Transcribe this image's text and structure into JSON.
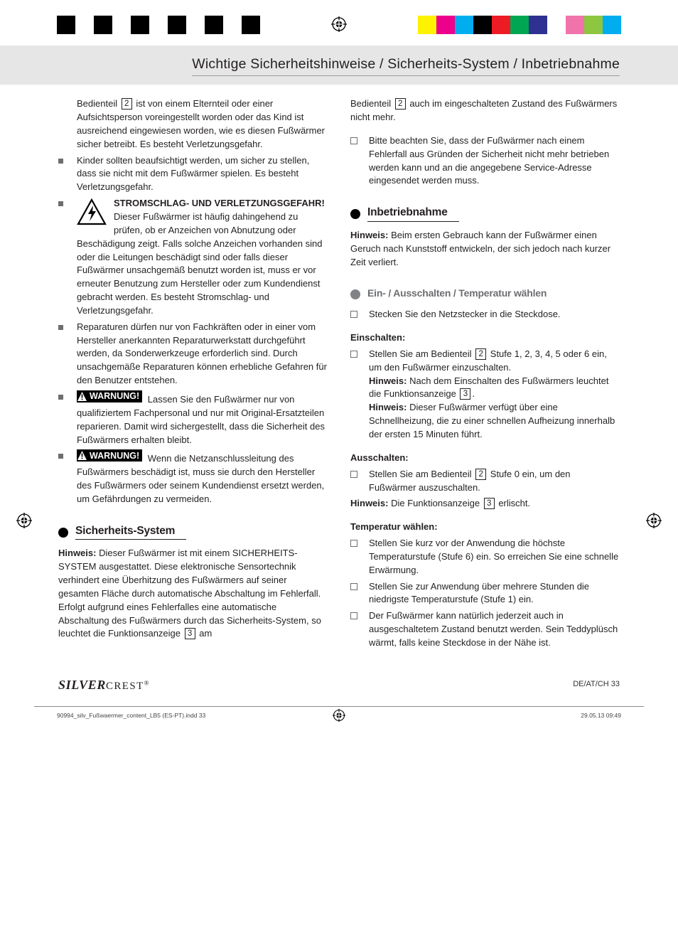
{
  "registration_colors_left": [
    "#000000",
    "#ffffff",
    "#000000",
    "#ffffff",
    "#000000",
    "#ffffff",
    "#000000",
    "#ffffff",
    "#000000",
    "#ffffff",
    "#000000"
  ],
  "registration_colors_right": [
    "#fff200",
    "#ec008c",
    "#00aeef",
    "#000000",
    "#ed1c24",
    "#00a651",
    "#2e3192",
    "#ffffff",
    "#f173ac",
    "#8dc63f",
    "#00adef"
  ],
  "header": {
    "title": "Wichtige Sicherheitshinweise / Sicherheits-System / Inbetriebnahme"
  },
  "col_left": {
    "intro_pre": "Bedienteil ",
    "intro_ref": "2",
    "intro_post": " ist von einem Elternteil oder einer Aufsichtsperson voreingestellt worden oder das Kind ist ausreichend eingewiesen worden, wie es diesen Fußwärmer sicher betreibt. Es besteht Verletzungsgefahr.",
    "b1": "Kinder sollten beaufsichtigt werden, um sicher zu stellen, dass sie nicht mit dem Fußwärmer spielen. Es besteht Verletzungsgefahr.",
    "b2_warn": "STROMSCHLAG- UND VERLETZUNGSGEFAHR!",
    "b2_rest": " Dieser Fußwärmer ist häufig dahingehend zu prüfen, ob er Anzeichen von Abnutzung oder Beschädigung zeigt. Falls solche Anzeichen vorhanden sind oder die Leitungen beschädigt sind oder falls dieser Fußwärmer unsachgemäß benutzt worden ist, muss er vor erneuter Benutzung zum Hersteller oder zum Kundendienst gebracht werden. Es besteht Stromschlag- und Verletzungsgefahr.",
    "b3": "Reparaturen dürfen nur von Fachkräften oder in einer vom Hersteller anerkannten Reparaturwerkstatt durchgeführt werden, da Sonderwerkzeuge erforderlich sind. Durch unsachgemäße Reparaturen können erhebliche Gefahren für den Benutzer entstehen.",
    "b4_label": "WARNUNG!",
    "b4_rest": " Lassen Sie den Fußwärmer nur von qualifiziertem Fachpersonal und nur mit Original-Ersatzteilen reparieren. Damit wird sichergestellt, dass die Sicherheit des Fußwärmers erhalten bleibt.",
    "b5_label": "WARNUNG!",
    "b5_rest": " Wenn die Netzanschlussleitung des Fußwärmers beschädigt ist, muss sie durch den Hersteller des Fußwärmers oder seinem Kundendienst ersetzt werden, um Gefährdungen zu vermeiden.",
    "sec_title": "Sicherheits-System",
    "sec_label": "Hinweis:",
    "sec_pre": " Dieser Fußwärmer ist mit einem SICHERHEITS-SYSTEM ausgestattet. Diese elektronische Sensortechnik verhindert eine Überhitzung des Fußwärmers auf seiner gesamten Fläche durch automatische Abschaltung im Fehlerfall. Erfolgt aufgrund eines Fehlerfalles eine automatische Abschaltung des Fußwärmers durch das Sicherheits-System, so leuchtet die Funktionsanzeige ",
    "sec_ref": "3",
    "sec_post": " am"
  },
  "col_right": {
    "cont_pre": "Bedienteil ",
    "cont_ref": "2",
    "cont_post": " auch im eingeschalteten Zustand des Fußwärmers nicht mehr.",
    "note1": "Bitte beachten Sie, dass der Fußwärmer nach einem Fehlerfall aus Gründen der Sicherheit nicht mehr betrieben werden kann und an die angegebene Service-Adresse eingesendet werden muss.",
    "inbetr_title": "Inbetriebnahme",
    "inbetr_label": "Hinweis:",
    "inbetr_text": " Beim ersten Gebrauch kann der Fußwärmer einen Geruch nach Kunststoff entwickeln, der sich jedoch nach kurzer Zeit verliert.",
    "onoff_title": "Ein- / Ausschalten / Temperatur wählen",
    "plug": "Stecken Sie den Netzstecker in die Steckdose.",
    "ein_head": "Einschalten:",
    "ein_pre": "Stellen Sie am Bedienteil ",
    "ein_ref": "2",
    "ein_mid": " Stufe 1, 2, 3, 4, 5 oder 6 ein, um den Fußwärmer einzuschalten.",
    "ein_h1_label": "Hinweis:",
    "ein_h1_pre": " Nach dem Einschalten des Fußwärmers leuchtet die Funktionsanzeige ",
    "ein_h1_ref": "3",
    "ein_h1_post": ".",
    "ein_h2_label": "Hinweis:",
    "ein_h2_text": " Dieser Fußwärmer verfügt über eine Schnellheizung, die zu einer schnellen Aufheizung innerhalb der ersten 15 Minuten führt.",
    "aus_head": "Ausschalten:",
    "aus_pre": "Stellen Sie am Bedienteil ",
    "aus_ref": "2",
    "aus_post": " Stufe 0 ein, um den Fußwärmer auszuschalten.",
    "aus_h_label": "Hinweis:",
    "aus_h_pre": " Die Funktionsanzeige ",
    "aus_h_ref": "3",
    "aus_h_post": " erlischt.",
    "temp_head": "Temperatur wählen:",
    "temp1": "Stellen Sie kurz vor der Anwendung die höchste Temperaturstufe (Stufe 6) ein. So erreichen Sie eine schnelle Erwärmung.",
    "temp2": "Stellen Sie zur Anwendung über mehrere Stunden die niedrigste Temperaturstufe (Stufe 1) ein.",
    "temp3": "Der Fußwärmer kann natürlich jederzeit auch in ausgeschaltetem Zustand benutzt werden. Sein Teddyplüsch wärmt, falls keine Steckdose in der Nähe ist."
  },
  "footer": {
    "brand1": "SILVER",
    "brand2": "CREST",
    "reg": "®",
    "pagenum": "DE/AT/CH   33"
  },
  "imprint": {
    "file": "90994_silv_Fußwaermer_content_LB5 (ES-PT).indd   33",
    "date": "29.05.13   09:49"
  }
}
